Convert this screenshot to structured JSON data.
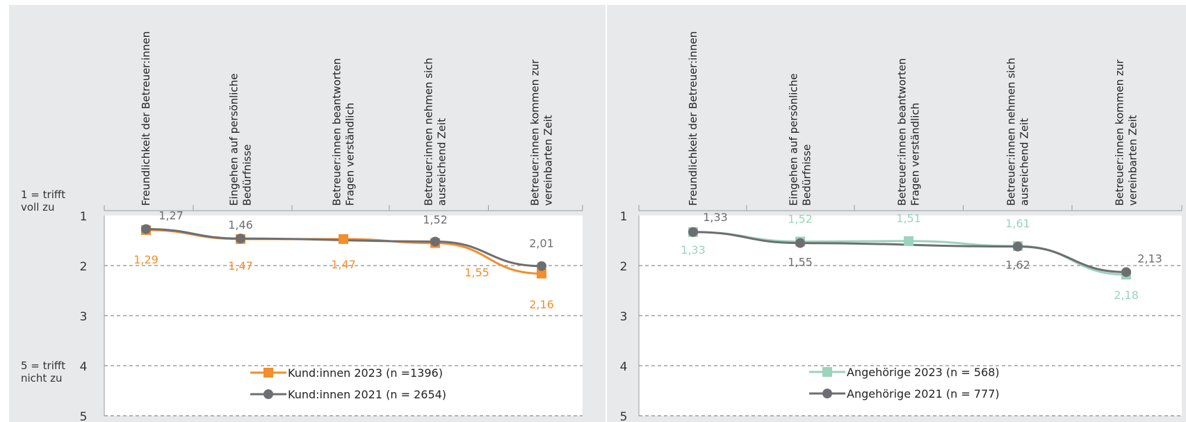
{
  "scale_notes": {
    "top": [
      "1 = trifft",
      "voll zu"
    ],
    "bottom": [
      "5 = trifft",
      "nicht zu"
    ]
  },
  "chart_data": [
    {
      "type": "line",
      "categories": [
        [
          "Freundlichkeit der Betreuer:innen"
        ],
        [
          "Eingehen auf persönliche",
          "Bedürfnisse"
        ],
        [
          "Betreuer:innen beantworten",
          "Fragen verständlich"
        ],
        [
          "Betreuer:innen nehmen sich",
          "ausreichend Zeit"
        ],
        [
          "Betreuer:innen kommen zur",
          "vereinbarten Zeit"
        ]
      ],
      "ylim": [
        1,
        5
      ],
      "yticks": [
        "1",
        "2",
        "3",
        "4",
        "5"
      ],
      "y_inverted": true,
      "grid": "dashed",
      "legend_position": "bottom-center",
      "series": [
        {
          "name": "Kund:innen 2023 (n =1396)",
          "color": "#f28e2b",
          "marker": "square",
          "values": [
            1.29,
            1.47,
            1.47,
            1.55,
            2.16
          ],
          "labels": [
            "1,29",
            "1,47",
            "1,47",
            "1,55",
            "2,16"
          ]
        },
        {
          "name": "Kund:innen 2021 (n = 2654)",
          "color": "#6d6e71",
          "marker": "circle",
          "values": [
            1.27,
            1.46,
            null,
            1.52,
            2.01
          ],
          "labels": [
            "1,27",
            "1,46",
            null,
            "1,52",
            "2,01"
          ]
        }
      ]
    },
    {
      "type": "line",
      "categories": [
        [
          "Freundlichkeit der Betreuer:innen"
        ],
        [
          "Eingehen auf persönliche",
          "Bedürfnisse"
        ],
        [
          "Betreuer:innen beantworten",
          "Fragen verständlich"
        ],
        [
          "Betreuer:innen nehmen sich",
          "ausreichend Zeit"
        ],
        [
          "Betreuer:innen kommen zur",
          "vereinbarten Zeit"
        ]
      ],
      "ylim": [
        1,
        5
      ],
      "yticks": [
        "1",
        "2",
        "3",
        "4",
        "5"
      ],
      "y_inverted": true,
      "grid": "dashed",
      "legend_position": "bottom-center",
      "series": [
        {
          "name": "Angehörige 2023 (n = 568)",
          "color": "#9bd3bd",
          "marker": "square",
          "values": [
            1.33,
            1.52,
            1.51,
            1.61,
            2.18
          ],
          "labels": [
            "1,33",
            "1,52",
            "1,51",
            "1,61",
            "2,18"
          ]
        },
        {
          "name": "Angehörige 2021 (n = 777)",
          "color": "#6d6e71",
          "marker": "circle",
          "values": [
            1.33,
            1.55,
            null,
            1.62,
            2.13
          ],
          "labels": [
            "1,33",
            "1,55",
            null,
            "1,62",
            "2,13"
          ]
        }
      ]
    }
  ]
}
